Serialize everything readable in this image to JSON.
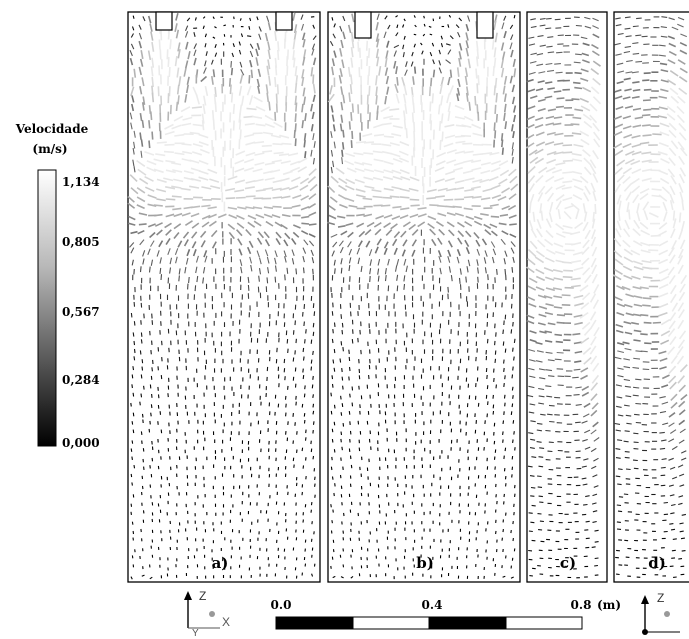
{
  "legend": {
    "title": "Velocidade",
    "unit": "(m/s)",
    "ticks": [
      "1,134",
      "0,805",
      "0,567",
      "0,284",
      "0,000"
    ],
    "colors": {
      "high": "#ffffff",
      "low": "#000000"
    }
  },
  "panels": [
    {
      "label": "a)",
      "jets": 2
    },
    {
      "label": "b)",
      "jets": 2
    },
    {
      "label": "c)",
      "jets": 0
    },
    {
      "label": "d)",
      "jets": 0
    }
  ],
  "scale_bar": {
    "ticks": [
      "0.0",
      "0.4",
      "0.8"
    ],
    "unit": "(m)"
  },
  "axes_triad": {
    "z": "Z",
    "x": "X",
    "y": "Y"
  }
}
